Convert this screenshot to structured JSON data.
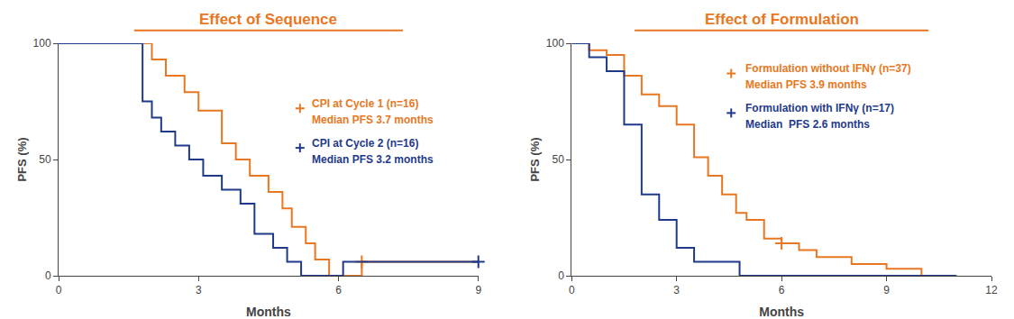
{
  "chart_data": [
    {
      "type": "step",
      "title": "Effect of Sequence",
      "color": "#E87722",
      "xlabel": "Months",
      "ylabel": "PFS (%)",
      "xlim": [
        0,
        9
      ],
      "ylim": [
        0,
        100
      ],
      "xticks": [
        0,
        3,
        6,
        9
      ],
      "yticks": [
        0,
        50,
        100
      ],
      "grid": false,
      "series": [
        {
          "name": "CPI at Cycle 1 (n=16)",
          "color": "#E87722",
          "marker": "plus",
          "x": [
            0,
            2.0,
            2.0,
            2.3,
            2.3,
            2.7,
            2.7,
            3.0,
            3.0,
            3.5,
            3.5,
            3.8,
            3.8,
            4.1,
            4.1,
            4.5,
            4.5,
            4.8,
            4.8,
            5.0,
            5.0,
            5.3,
            5.3,
            5.5,
            5.5,
            5.8,
            5.8,
            6.1,
            6.1,
            6.5,
            6.5,
            9.0
          ],
          "values": [
            100,
            100,
            93,
            93,
            86,
            86,
            79,
            79,
            71,
            71,
            57,
            57,
            50,
            50,
            43,
            43,
            36,
            36,
            29,
            29,
            21,
            21,
            14,
            14,
            7,
            7,
            0,
            0,
            0,
            0,
            6,
            6
          ],
          "censor_x": [
            6.5
          ],
          "censor_values": [
            6
          ]
        },
        {
          "name": "CPI at Cycle 2 (n=16)",
          "color": "#1F3A8A",
          "marker": "plus",
          "x": [
            0,
            1.8,
            1.8,
            2.0,
            2.0,
            2.2,
            2.2,
            2.5,
            2.5,
            2.8,
            2.8,
            3.1,
            3.1,
            3.5,
            3.5,
            3.9,
            3.9,
            4.2,
            4.2,
            4.6,
            4.6,
            4.9,
            4.9,
            5.2,
            5.2,
            5.5,
            5.5,
            5.8,
            5.8,
            6.1,
            6.1,
            9.0
          ],
          "values": [
            100,
            100,
            75,
            75,
            68,
            68,
            62,
            62,
            56,
            56,
            50,
            50,
            43,
            43,
            37,
            37,
            31,
            31,
            18,
            18,
            12,
            12,
            6,
            6,
            0,
            0,
            0,
            0,
            0,
            0,
            6,
            6
          ],
          "censor_x": [
            9.0
          ],
          "censor_values": [
            6
          ]
        }
      ],
      "annotations": [
        "Median PFS 3.7 months",
        "Median PFS 3.2 months"
      ]
    },
    {
      "type": "step",
      "title": "Effect of Formulation",
      "color": "#E87722",
      "xlabel": "Months",
      "ylabel": "PFS (%)",
      "xlim": [
        0,
        12
      ],
      "ylim": [
        0,
        100
      ],
      "xticks": [
        0,
        3,
        6,
        9,
        12
      ],
      "yticks": [
        0,
        50,
        100
      ],
      "grid": false,
      "series": [
        {
          "name": "Formulation without IFNγ (n=37)",
          "color": "#E87722",
          "marker": "plus",
          "x": [
            0,
            0.5,
            0.5,
            1.0,
            1.0,
            1.5,
            1.5,
            2.0,
            2.0,
            2.5,
            2.5,
            3.0,
            3.0,
            3.5,
            3.5,
            3.9,
            3.9,
            4.3,
            4.3,
            4.7,
            4.7,
            5.0,
            5.0,
            5.5,
            5.5,
            6.0,
            6.0,
            6.5,
            6.5,
            7.0,
            7.0,
            7.5,
            7.5,
            8.0,
            8.0,
            9.0,
            9.0,
            9.5,
            9.5,
            10.0,
            10.0,
            11.0
          ],
          "values": [
            100,
            100,
            97,
            97,
            95,
            95,
            86,
            86,
            78,
            78,
            73,
            73,
            65,
            65,
            51,
            51,
            43,
            43,
            35,
            35,
            27,
            27,
            24,
            24,
            16,
            16,
            14,
            14,
            11,
            11,
            8,
            8,
            8,
            8,
            5,
            5,
            3,
            3,
            3,
            3,
            0,
            0
          ],
          "censor_x": [
            6.0
          ],
          "censor_values": [
            14
          ]
        },
        {
          "name": "Formulation with IFNγ (n=17)",
          "color": "#1F3A8A",
          "marker": "plus",
          "x": [
            0,
            0.5,
            0.5,
            1.0,
            1.0,
            1.5,
            1.5,
            2.0,
            2.0,
            2.5,
            2.5,
            3.0,
            3.0,
            3.5,
            3.5,
            4.0,
            4.0,
            4.5,
            4.5,
            4.8,
            4.8,
            5.5,
            5.5,
            11.0
          ],
          "values": [
            100,
            100,
            94,
            94,
            88,
            88,
            65,
            65,
            35,
            35,
            24,
            24,
            12,
            12,
            6,
            6,
            6,
            6,
            6,
            6,
            0,
            0,
            0,
            0
          ],
          "censor_x": [],
          "censor_values": []
        }
      ],
      "annotations": [
        "Median PFS 3.9 months",
        "Median  PFS 2.6 months"
      ]
    }
  ]
}
